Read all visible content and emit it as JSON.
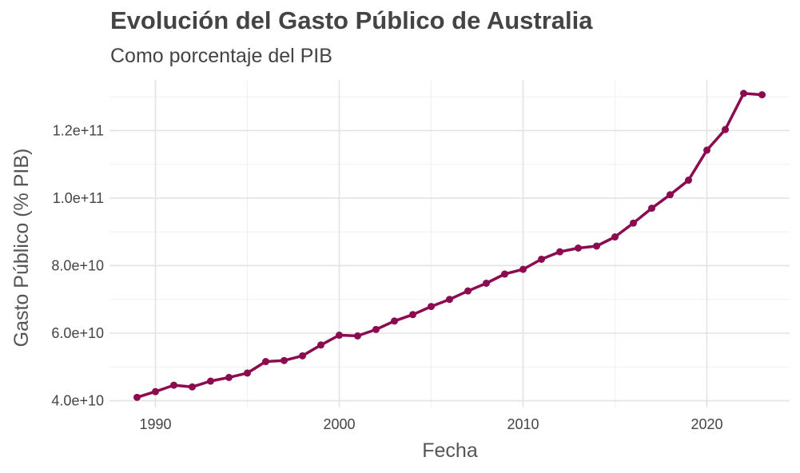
{
  "chart_data": {
    "type": "line",
    "title": "Evolución del Gasto Público de Australia",
    "subtitle": "Como porcentaje del PIB",
    "xlabel": "Fecha",
    "ylabel": "Gasto Público (% PIB)",
    "xlim": [
      1987.5,
      2024.5
    ],
    "ylim": [
      38000000000,
      135000000000
    ],
    "x_ticks": [
      1990,
      2000,
      2010,
      2020
    ],
    "x_tick_labels": [
      "1990",
      "2000",
      "2010",
      "2020"
    ],
    "y_ticks": [
      40000000000,
      60000000000,
      80000000000,
      100000000000,
      120000000000
    ],
    "y_tick_labels": [
      "4.0e+10",
      "6.0e+10",
      "8.0e+10",
      "1.0e+11",
      "1.2e+11"
    ],
    "grid": true,
    "color": "#8B0A50",
    "x": [
      1989,
      1990,
      1991,
      1992,
      1993,
      1994,
      1995,
      1996,
      1997,
      1998,
      1999,
      2000,
      2001,
      2002,
      2003,
      2004,
      2005,
      2006,
      2007,
      2008,
      2009,
      2010,
      2011,
      2012,
      2013,
      2014,
      2015,
      2016,
      2017,
      2018,
      2019,
      2020,
      2021,
      2022,
      2023
    ],
    "values": [
      41000000000,
      42700000000,
      44600000000,
      44100000000,
      45800000000,
      46900000000,
      48200000000,
      51600000000,
      51900000000,
      53300000000,
      56500000000,
      59400000000,
      59200000000,
      61100000000,
      63600000000,
      65500000000,
      67900000000,
      70000000000,
      72500000000,
      74800000000,
      77500000000,
      78900000000,
      81900000000,
      84100000000,
      85200000000,
      85800000000,
      88500000000,
      92600000000,
      97000000000,
      101000000000,
      105300000000,
      114200000000,
      120300000000,
      131000000000,
      130600000000
    ]
  }
}
